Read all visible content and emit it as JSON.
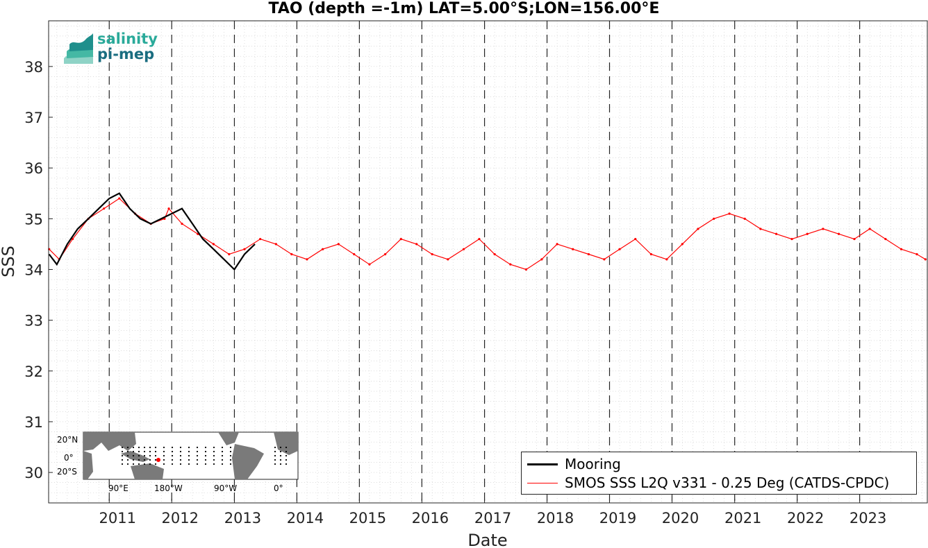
{
  "header": {
    "title": "TAO (depth =-1m) LAT=5.00°S;LON=156.00°E"
  },
  "logo": {
    "line1": "salinity",
    "line2": "pi-mep"
  },
  "legend": {
    "mooring_label": "Mooring",
    "smos_label": "SMOS SSS L2Q v331 - 0.25 Deg (CATDS-CPDC)"
  },
  "inset_map": {
    "lat_ticks": [
      "20°N",
      "0°",
      "20°S"
    ],
    "lon_ticks": [
      "90°E",
      "180°W",
      "90°W",
      "0°"
    ]
  },
  "chart_data": {
    "type": "line",
    "title": "TAO (depth =-1m) LAT=5.00°S;LON=156.00°E",
    "xlabel": "Date",
    "ylabel": "SSS",
    "xlim": [
      "2010-01-12",
      "2024-01-31"
    ],
    "ylim": [
      29.4,
      38.9
    ],
    "x_ticks": [
      "2011",
      "2012",
      "2013",
      "2014",
      "2015",
      "2016",
      "2017",
      "2018",
      "2019",
      "2020",
      "2021",
      "2022",
      "2023"
    ],
    "y_ticks": [
      30,
      31,
      32,
      33,
      34,
      35,
      36,
      37,
      38
    ],
    "grid": "dotted minor grid; dashed vertical lines at year boundaries",
    "legend_position": "bottom-right",
    "colors": {
      "mooring": "#000000",
      "smos": "#ff0000"
    },
    "series": [
      {
        "name": "Mooring",
        "x": [
          "2010-01-15",
          "2010-03-01",
          "2010-05-01",
          "2010-07-01",
          "2010-09-01",
          "2010-11-01",
          "2011-01-01",
          "2011-03-01",
          "2011-05-01",
          "2011-07-01",
          "2011-09-01",
          "2011-11-01",
          "2012-01-01",
          "2012-03-01",
          "2012-05-01",
          "2012-07-01",
          "2012-09-01",
          "2012-11-01",
          "2013-01-01",
          "2013-03-01",
          "2013-05-01"
        ],
        "y": [
          34.3,
          34.1,
          34.5,
          34.8,
          35.0,
          35.2,
          35.4,
          35.5,
          35.2,
          35.0,
          34.9,
          35.0,
          35.1,
          35.2,
          34.9,
          34.6,
          34.4,
          34.2,
          34.0,
          34.3,
          34.5
        ]
      },
      {
        "name": "SMOS SSS L2Q v331 - 0.25 Deg (CATDS-CPDC)",
        "x": [
          "2010-01-15",
          "2010-03-15",
          "2010-06-01",
          "2010-09-01",
          "2010-12-01",
          "2011-03-01",
          "2011-06-01",
          "2011-09-01",
          "2011-11-20",
          "2011-12-15",
          "2012-03-01",
          "2012-06-01",
          "2012-09-01",
          "2012-12-01",
          "2013-03-01",
          "2013-06-01",
          "2013-09-01",
          "2013-12-01",
          "2014-03-01",
          "2014-06-01",
          "2014-09-01",
          "2014-12-01",
          "2015-03-01",
          "2015-06-01",
          "2015-09-01",
          "2015-12-01",
          "2016-03-01",
          "2016-06-01",
          "2016-09-01",
          "2016-12-01",
          "2017-03-01",
          "2017-06-01",
          "2017-09-01",
          "2017-12-01",
          "2018-03-01",
          "2018-06-01",
          "2018-09-01",
          "2018-12-01",
          "2019-03-01",
          "2019-06-01",
          "2019-09-01",
          "2019-12-01",
          "2020-03-01",
          "2020-06-01",
          "2020-09-01",
          "2020-12-01",
          "2021-03-01",
          "2021-06-01",
          "2021-09-01",
          "2021-12-01",
          "2022-03-01",
          "2022-06-01",
          "2022-09-01",
          "2022-12-01",
          "2023-03-01",
          "2023-06-01",
          "2023-09-01",
          "2023-12-01",
          "2024-01-20"
        ],
        "y": [
          34.4,
          34.2,
          34.6,
          35.0,
          35.2,
          35.4,
          35.1,
          34.9,
          35.0,
          35.2,
          34.9,
          34.7,
          34.5,
          34.3,
          34.4,
          34.6,
          34.5,
          34.3,
          34.2,
          34.4,
          34.5,
          34.3,
          34.1,
          34.3,
          34.6,
          34.5,
          34.3,
          34.2,
          34.4,
          34.6,
          34.3,
          34.1,
          34.0,
          34.2,
          34.5,
          34.4,
          34.3,
          34.2,
          34.4,
          34.6,
          34.3,
          34.2,
          34.5,
          34.8,
          35.0,
          35.1,
          35.0,
          34.8,
          34.7,
          34.6,
          34.7,
          34.8,
          34.7,
          34.6,
          34.8,
          34.6,
          34.4,
          34.3,
          34.2
        ]
      }
    ]
  }
}
